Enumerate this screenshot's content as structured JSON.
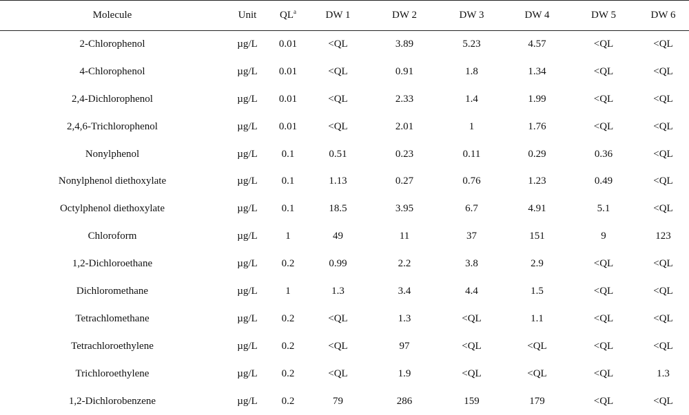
{
  "table": {
    "headers": {
      "molecule": "Molecule",
      "unit": "Unit",
      "ql": "QL",
      "ql_sup": "a",
      "dw1": "DW 1",
      "dw2": "DW 2",
      "dw3": "DW 3",
      "dw4": "DW 4",
      "dw5": "DW 5",
      "dw6": "DW 6"
    },
    "rows": [
      {
        "molecule": "2-Chlorophenol",
        "unit": "µg/L",
        "ql": "0.01",
        "dw1": "<QL",
        "dw2": "3.89",
        "dw3": "5.23",
        "dw4": "4.57",
        "dw5": "<QL",
        "dw6": "<QL"
      },
      {
        "molecule": "4-Chlorophenol",
        "unit": "µg/L",
        "ql": "0.01",
        "dw1": "<QL",
        "dw2": "0.91",
        "dw3": "1.8",
        "dw4": "1.34",
        "dw5": "<QL",
        "dw6": "<QL"
      },
      {
        "molecule": "2,4-Dichlorophenol",
        "unit": "µg/L",
        "ql": "0.01",
        "dw1": "<QL",
        "dw2": "2.33",
        "dw3": "1.4",
        "dw4": "1.99",
        "dw5": "<QL",
        "dw6": "<QL"
      },
      {
        "molecule": "2,4,6-Trichlorophenol",
        "unit": "µg/L",
        "ql": "0.01",
        "dw1": "<QL",
        "dw2": "2.01",
        "dw3": "1",
        "dw4": "1.76",
        "dw5": "<QL",
        "dw6": "<QL"
      },
      {
        "molecule": "Nonylphenol",
        "unit": "µg/L",
        "ql": "0.1",
        "dw1": "0.51",
        "dw2": "0.23",
        "dw3": "0.11",
        "dw4": "0.29",
        "dw5": "0.36",
        "dw6": "<QL"
      },
      {
        "molecule": "Nonylphenol diethoxylate",
        "unit": "µg/L",
        "ql": "0.1",
        "dw1": "1.13",
        "dw2": "0.27",
        "dw3": "0.76",
        "dw4": "1.23",
        "dw5": "0.49",
        "dw6": "<QL"
      },
      {
        "molecule": "Octylphenol diethoxylate",
        "unit": "µg/L",
        "ql": "0.1",
        "dw1": "18.5",
        "dw2": "3.95",
        "dw3": "6.7",
        "dw4": "4.91",
        "dw5": "5.1",
        "dw6": "<QL"
      },
      {
        "molecule": "Chloroform",
        "unit": "µg/L",
        "ql": "1",
        "dw1": "49",
        "dw2": "11",
        "dw3": "37",
        "dw4": "151",
        "dw5": "9",
        "dw6": "123"
      },
      {
        "molecule": "1,2-Dichloroethane",
        "unit": "µg/L",
        "ql": "0.2",
        "dw1": "0.99",
        "dw2": "2.2",
        "dw3": "3.8",
        "dw4": "2.9",
        "dw5": "<QL",
        "dw6": "<QL"
      },
      {
        "molecule": "Dichloromethane",
        "unit": "µg/L",
        "ql": "1",
        "dw1": "1.3",
        "dw2": "3.4",
        "dw3": "4.4",
        "dw4": "1.5",
        "dw5": "<QL",
        "dw6": "<QL"
      },
      {
        "molecule": "Tetrachlomethane",
        "unit": "µg/L",
        "ql": "0.2",
        "dw1": "<QL",
        "dw2": "1.3",
        "dw3": "<QL",
        "dw4": "1.1",
        "dw5": "<QL",
        "dw6": "<QL"
      },
      {
        "molecule": "Tetrachloroethylene",
        "unit": "µg/L",
        "ql": "0.2",
        "dw1": "<QL",
        "dw2": "97",
        "dw3": "<QL",
        "dw4": "<QL",
        "dw5": "<QL",
        "dw6": "<QL"
      },
      {
        "molecule": "Trichloroethylene",
        "unit": "µg/L",
        "ql": "0.2",
        "dw1": "<QL",
        "dw2": "1.9",
        "dw3": "<QL",
        "dw4": "<QL",
        "dw5": "<QL",
        "dw6": "1.3"
      },
      {
        "molecule": "1,2-Dichlorobenzene",
        "unit": "µg/L",
        "ql": "0.2",
        "dw1": "79",
        "dw2": "286",
        "dw3": "159",
        "dw4": "179",
        "dw5": "<QL",
        "dw6": "<QL"
      }
    ]
  }
}
